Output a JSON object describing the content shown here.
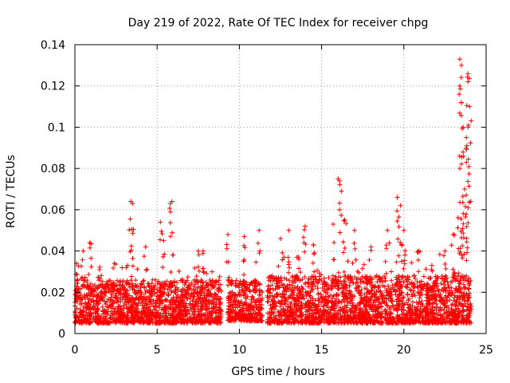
{
  "chart_data": {
    "type": "scatter",
    "title": "Day 219 of 2022, Rate Of TEC Index for receiver chpg",
    "xlabel": "GPS time / hours",
    "ylabel": "ROTI / TECUs",
    "xlim": [
      0,
      25
    ],
    "ylim": [
      0,
      0.14
    ],
    "grid": true,
    "marker": "plus",
    "xticks": [
      {
        "value": 0,
        "label": "0"
      },
      {
        "value": 5,
        "label": "5"
      },
      {
        "value": 10,
        "label": "10"
      },
      {
        "value": 15,
        "label": "15"
      },
      {
        "value": 20,
        "label": "20"
      },
      {
        "value": 25,
        "label": "25"
      }
    ],
    "yticks": [
      {
        "value": 0,
        "label": "0"
      },
      {
        "value": 0.02,
        "label": "0.02"
      },
      {
        "value": 0.04,
        "label": "0.04"
      },
      {
        "value": 0.06,
        "label": "0.06"
      },
      {
        "value": 0.08,
        "label": "0.08"
      },
      {
        "value": 0.1,
        "label": "0.1"
      },
      {
        "value": 0.12,
        "label": "0.12"
      },
      {
        "value": 0.14,
        "label": "0.14"
      }
    ],
    "series": [
      {
        "name": "ROTI",
        "color": "#ff0000",
        "notable_points": [
          {
            "x": 0.1,
            "y": 0.034
          },
          {
            "x": 0.5,
            "y": 0.04
          },
          {
            "x": 0.9,
            "y": 0.044
          },
          {
            "x": 1.5,
            "y": 0.031
          },
          {
            "x": 2.4,
            "y": 0.034
          },
          {
            "x": 3.2,
            "y": 0.033
          },
          {
            "x": 3.4,
            "y": 0.064
          },
          {
            "x": 3.5,
            "y": 0.063
          },
          {
            "x": 4.3,
            "y": 0.042
          },
          {
            "x": 5.2,
            "y": 0.054
          },
          {
            "x": 5.4,
            "y": 0.045
          },
          {
            "x": 5.8,
            "y": 0.063
          },
          {
            "x": 5.9,
            "y": 0.064
          },
          {
            "x": 7.5,
            "y": 0.04
          },
          {
            "x": 7.8,
            "y": 0.04
          },
          {
            "x": 9.3,
            "y": 0.048
          },
          {
            "x": 10.3,
            "y": 0.047
          },
          {
            "x": 11.2,
            "y": 0.05
          },
          {
            "x": 12.5,
            "y": 0.046
          },
          {
            "x": 13.0,
            "y": 0.05
          },
          {
            "x": 13.5,
            "y": 0.037
          },
          {
            "x": 14.0,
            "y": 0.052
          },
          {
            "x": 14.5,
            "y": 0.043
          },
          {
            "x": 15.7,
            "y": 0.053
          },
          {
            "x": 16.0,
            "y": 0.075
          },
          {
            "x": 16.2,
            "y": 0.069
          },
          {
            "x": 16.4,
            "y": 0.055
          },
          {
            "x": 17.0,
            "y": 0.05
          },
          {
            "x": 18.0,
            "y": 0.042
          },
          {
            "x": 19.0,
            "y": 0.05
          },
          {
            "x": 19.6,
            "y": 0.066
          },
          {
            "x": 19.8,
            "y": 0.062
          },
          {
            "x": 20.0,
            "y": 0.05
          },
          {
            "x": 20.9,
            "y": 0.04
          },
          {
            "x": 21.7,
            "y": 0.033
          },
          {
            "x": 22.5,
            "y": 0.04
          },
          {
            "x": 23.0,
            "y": 0.048
          },
          {
            "x": 23.4,
            "y": 0.133
          },
          {
            "x": 23.5,
            "y": 0.13
          },
          {
            "x": 23.4,
            "y": 0.12
          },
          {
            "x": 23.5,
            "y": 0.112
          },
          {
            "x": 23.6,
            "y": 0.1
          },
          {
            "x": 23.6,
            "y": 0.088
          },
          {
            "x": 23.4,
            "y": 0.08
          },
          {
            "x": 23.7,
            "y": 0.07
          },
          {
            "x": 23.8,
            "y": 0.083
          },
          {
            "x": 23.9,
            "y": 0.126
          },
          {
            "x": 23.9,
            "y": 0.122
          },
          {
            "x": 24.0,
            "y": 0.11
          },
          {
            "x": 23.9,
            "y": 0.1
          },
          {
            "x": 23.8,
            "y": 0.095
          }
        ],
        "baseline_band": [
          {
            "x_start": 0.0,
            "x_end": 8.9,
            "y_low": 0.005,
            "y_high": 0.026
          },
          {
            "x_start": 9.3,
            "y_low": 0.006,
            "x_end": 11.4,
            "y_high": 0.026
          },
          {
            "x_start": 11.7,
            "x_end": 24.1,
            "y_low": 0.005,
            "y_high": 0.028
          }
        ]
      }
    ]
  }
}
